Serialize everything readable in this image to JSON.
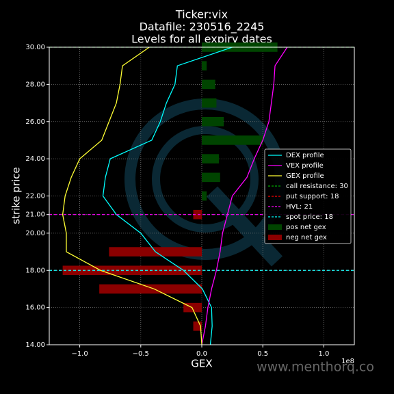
{
  "chart_data": {
    "type": "line",
    "title": [
      "Ticker:vix",
      "Datafile: 230516_2245",
      "Levels for all expiry dates"
    ],
    "xlabel": "GEX",
    "ylabel": "strike price",
    "x_offset_label": "1e8",
    "watermark": "www.menthorq.co",
    "xlim": [
      -1.25,
      1.25
    ],
    "ylim": [
      14,
      30
    ],
    "xticks": [
      {
        "value": -1.0,
        "label": "−1.0"
      },
      {
        "value": -0.5,
        "label": "−0.5"
      },
      {
        "value": 0,
        "label": "0.0"
      },
      {
        "value": 0.5,
        "label": "0.5"
      },
      {
        "value": 1.0,
        "label": "1.0"
      }
    ],
    "yticks": [
      {
        "value": 14,
        "label": "14.00"
      },
      {
        "value": 16,
        "label": "16.00"
      },
      {
        "value": 18,
        "label": "18.00"
      },
      {
        "value": 20,
        "label": "20.00"
      },
      {
        "value": 21,
        "label": "21.00"
      },
      {
        "value": 22,
        "label": "22.00"
      },
      {
        "value": 24,
        "label": "24.00"
      },
      {
        "value": 26,
        "label": "26.00"
      },
      {
        "value": 28,
        "label": "28.00"
      },
      {
        "value": 30,
        "label": "30.00"
      }
    ],
    "grid": true,
    "strikes": [
      14,
      15,
      16,
      17,
      18,
      19,
      20,
      21,
      22,
      23,
      24,
      25,
      26,
      27,
      28,
      29,
      30
    ],
    "series": [
      {
        "name": "DEX profile",
        "color": "#00ffff",
        "values": [
          0.07,
          0.085,
          0.08,
          0.005,
          -0.15,
          -0.38,
          -0.5,
          -0.7,
          -0.81,
          -0.79,
          -0.75,
          -0.41,
          -0.34,
          -0.29,
          -0.22,
          -0.2,
          0.25
        ]
      },
      {
        "name": "VEX profile",
        "color": "#ff00ff",
        "values": [
          0,
          0.03,
          0.05,
          0.08,
          0.12,
          0.15,
          0.17,
          0.21,
          0.25,
          0.37,
          0.43,
          0.5,
          0.55,
          0.57,
          0.59,
          0.6,
          0.7
        ]
      },
      {
        "name": "GEX profile",
        "color": "#ffff33",
        "values": [
          0,
          -0.01,
          -0.08,
          -0.39,
          -0.83,
          -1.11,
          -1.11,
          -1.14,
          -1.12,
          -1.07,
          -1.0,
          -0.82,
          -0.76,
          -0.7,
          -0.67,
          -0.65,
          -0.43
        ]
      }
    ],
    "levels": [
      {
        "name": "call resistance: 30",
        "color": "#00aa00",
        "value": 30
      },
      {
        "name": "put support: 18",
        "color": "#ff0000",
        "value": 18
      },
      {
        "name": "HVL: 21",
        "color": "#ff00ff",
        "value": 21
      },
      {
        "name": "spot price: 18",
        "color": "#00ffff",
        "value": 18
      }
    ],
    "bars": [
      {
        "name": "pos net gex",
        "color": "#004400",
        "values": [
          null,
          null,
          null,
          null,
          null,
          null,
          null,
          null,
          0.04,
          0.15,
          0.14,
          0.5,
          0.18,
          0.12,
          0.11,
          0.04,
          0.62
        ]
      },
      {
        "name": "neg net gex",
        "color": "#8b0000",
        "values": [
          null,
          -0.07,
          -0.15,
          -0.84,
          -1.14,
          -0.76,
          null,
          -0.07,
          null,
          null,
          null,
          null,
          null,
          null,
          null,
          null,
          null
        ]
      }
    ]
  }
}
